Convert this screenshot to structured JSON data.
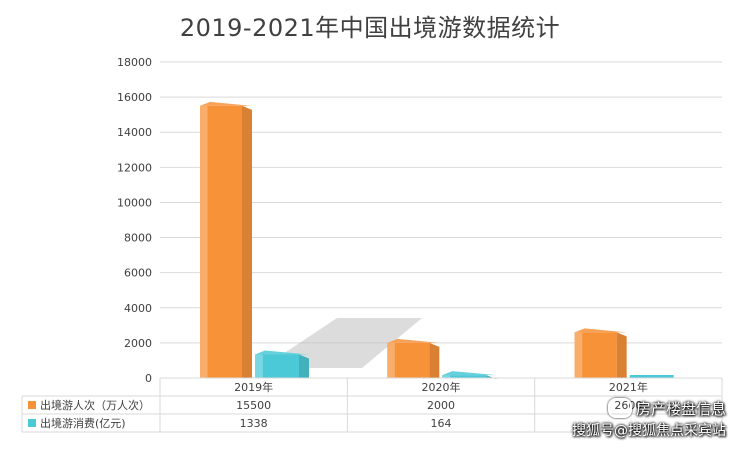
{
  "chart_data": {
    "type": "bar",
    "title": "2019-2021年中国出境游数据统计",
    "categories": [
      "2019年",
      "2020年",
      "2021年"
    ],
    "series": [
      {
        "name": "出境游人次（万人次）",
        "values": [
          15500,
          2000,
          2600
        ],
        "color": "#F79239"
      },
      {
        "name": "出境游消费(亿元)",
        "values": [
          1338,
          164,
          0
        ],
        "color": "#4BC9D6"
      }
    ],
    "ylim": [
      0,
      18000
    ],
    "yticks": [
      0,
      2000,
      4000,
      6000,
      8000,
      10000,
      12000,
      14000,
      16000,
      18000
    ],
    "grid": true,
    "data_table": {
      "rows": [
        [
          "15500",
          "2000",
          "2600"
        ],
        [
          "1338",
          "164",
          ""
        ]
      ]
    }
  },
  "watermark": {
    "line1": "房产楼盘信息",
    "line2": "搜狐号@搜狐焦点采宾站",
    "icon": "wechat-icon"
  }
}
